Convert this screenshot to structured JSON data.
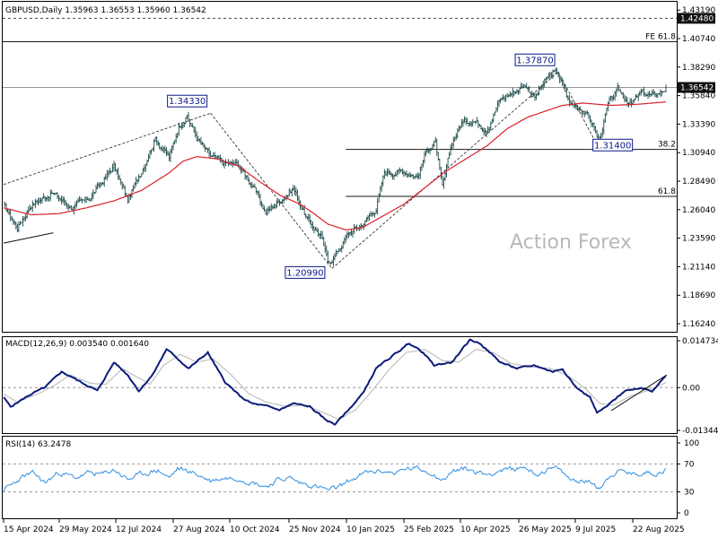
{
  "header": {
    "symbol_line": "GBPUSD,Daily  1.35963 1.36553 1.35960 1.36542"
  },
  "watermark": "Action Forex",
  "chart_data": [
    {
      "type": "candlestick",
      "pane": "price",
      "ylim": [
        1.1555,
        1.439
      ],
      "y_ticks": [
        "1.43190",
        "1.40740",
        "1.38290",
        "1.35840",
        "1.33390",
        "1.30940",
        "1.28490",
        "1.26040",
        "1.23590",
        "1.21140",
        "1.18690",
        "1.16240"
      ],
      "x_ticks": [
        "15 Apr 2024",
        "29 May 2024",
        "12 Jul 2024",
        "27 Aug 2024",
        "10 Oct 2024",
        "25 Nov 2024",
        "10 Jan 2025",
        "25 Feb 2025",
        "10 Apr 2025",
        "26 May 2025",
        "9 Jul 2025",
        "22 Aug 2025"
      ],
      "last_price_label": "1.36542",
      "last_price": 1.36542,
      "top_level_label": "1.42480",
      "top_level": 1.4248,
      "fib_levels": [
        {
          "label": "FE 61.8",
          "value": 1.4047
        },
        {
          "label": "38.2",
          "value": 1.3122
        },
        {
          "label": "61.8",
          "value": 1.2718
        }
      ],
      "annotations": [
        "1.34330",
        "1.20990",
        "1.37870",
        "1.31400"
      ],
      "series": [
        {
          "name": "close",
          "anchors": [
            [
              0,
              1.264
            ],
            [
              10,
              1.245
            ],
            [
              20,
              1.265
            ],
            [
              35,
              1.275
            ],
            [
              50,
              1.262
            ],
            [
              62,
              1.27
            ],
            [
              72,
              1.285
            ],
            [
              80,
              1.298
            ],
            [
              90,
              1.268
            ],
            [
              100,
              1.294
            ],
            [
              110,
              1.322
            ],
            [
              120,
              1.305
            ],
            [
              127,
              1.332
            ],
            [
              133,
              1.341
            ],
            [
              140,
              1.322
            ],
            [
              150,
              1.306
            ],
            [
              160,
              1.3
            ],
            [
              170,
              1.299
            ],
            [
              180,
              1.282
            ],
            [
              190,
              1.258
            ],
            [
              200,
              1.268
            ],
            [
              210,
              1.279
            ],
            [
              220,
              1.252
            ],
            [
              230,
              1.238
            ],
            [
              235,
              1.215
            ],
            [
              240,
              1.221
            ],
            [
              250,
              1.24
            ],
            [
              260,
              1.248
            ],
            [
              270,
              1.262
            ],
            [
              276,
              1.292
            ],
            [
              290,
              1.294
            ],
            [
              300,
              1.289
            ],
            [
              307,
              1.313
            ],
            [
              313,
              1.318
            ],
            [
              318,
              1.278
            ],
            [
              325,
              1.318
            ],
            [
              332,
              1.335
            ],
            [
              340,
              1.338
            ],
            [
              350,
              1.33
            ],
            [
              360,
              1.355
            ],
            [
              370,
              1.362
            ],
            [
              378,
              1.368
            ],
            [
              385,
              1.357
            ],
            [
              392,
              1.37
            ],
            [
              398,
              1.378
            ],
            [
              402,
              1.377
            ],
            [
              410,
              1.352
            ],
            [
              420,
              1.347
            ],
            [
              428,
              1.332
            ],
            [
              431,
              1.317
            ],
            [
              438,
              1.35
            ],
            [
              445,
              1.363
            ],
            [
              455,
              1.351
            ],
            [
              462,
              1.361
            ],
            [
              470,
              1.358
            ],
            [
              477,
              1.362
            ],
            [
              480,
              1.365
            ]
          ]
        },
        {
          "name": "MA",
          "anchors": [
            [
              0,
              1.262
            ],
            [
              20,
              1.256
            ],
            [
              40,
              1.257
            ],
            [
              60,
              1.262
            ],
            [
              80,
              1.268
            ],
            [
              100,
              1.277
            ],
            [
              120,
              1.292
            ],
            [
              130,
              1.302
            ],
            [
              140,
              1.306
            ],
            [
              155,
              1.304
            ],
            [
              170,
              1.298
            ],
            [
              185,
              1.285
            ],
            [
              200,
              1.273
            ],
            [
              215,
              1.265
            ],
            [
              225,
              1.257
            ],
            [
              235,
              1.248
            ],
            [
              248,
              1.243
            ],
            [
              260,
              1.245
            ],
            [
              275,
              1.255
            ],
            [
              290,
              1.265
            ],
            [
              305,
              1.279
            ],
            [
              320,
              1.293
            ],
            [
              335,
              1.304
            ],
            [
              350,
              1.315
            ],
            [
              365,
              1.33
            ],
            [
              380,
              1.34
            ],
            [
              395,
              1.346
            ],
            [
              405,
              1.35
            ],
            [
              420,
              1.352
            ],
            [
              440,
              1.35
            ],
            [
              460,
              1.351
            ],
            [
              480,
              1.353
            ]
          ]
        }
      ]
    },
    {
      "type": "line",
      "pane": "macd",
      "label": "MACD(12,26,9) 0.003540 0.001640",
      "ylim": [
        -0.01344,
        0.01473
      ],
      "y_ticks": [
        "0.014734",
        "0.00",
        "-0.013442"
      ],
      "series": [
        {
          "name": "MACD",
          "anchors": [
            [
              0,
              -0.003
            ],
            [
              5,
              -0.006
            ],
            [
              20,
              -0.002
            ],
            [
              30,
              0.0
            ],
            [
              42,
              0.005
            ],
            [
              55,
              0.002
            ],
            [
              68,
              -0.001
            ],
            [
              80,
              0.008
            ],
            [
              90,
              0.004
            ],
            [
              98,
              -0.001
            ],
            [
              108,
              0.004
            ],
            [
              118,
              0.012
            ],
            [
              124,
              0.01
            ],
            [
              134,
              0.006
            ],
            [
              148,
              0.011
            ],
            [
              160,
              0.002
            ],
            [
              172,
              -0.003
            ],
            [
              180,
              -0.005
            ],
            [
              192,
              -0.006
            ],
            [
              200,
              -0.007
            ],
            [
              210,
              -0.005
            ],
            [
              222,
              -0.006
            ],
            [
              233,
              -0.01
            ],
            [
              240,
              -0.0115
            ],
            [
              250,
              -0.007
            ],
            [
              260,
              -0.002
            ],
            [
              270,
              0.006
            ],
            [
              282,
              0.01
            ],
            [
              294,
              0.014
            ],
            [
              304,
              0.011
            ],
            [
              312,
              0.007
            ],
            [
              325,
              0.008
            ],
            [
              338,
              0.015
            ],
            [
              345,
              0.014
            ],
            [
              360,
              0.008
            ],
            [
              372,
              0.006
            ],
            [
              385,
              0.007
            ],
            [
              398,
              0.005
            ],
            [
              405,
              0.006
            ],
            [
              415,
              0.0
            ],
            [
              425,
              -0.003
            ],
            [
              430,
              -0.008
            ],
            [
              437,
              -0.006
            ],
            [
              450,
              -0.001
            ],
            [
              462,
              0.0
            ],
            [
              470,
              -0.001
            ],
            [
              475,
              0.0015
            ],
            [
              480,
              0.0035
            ]
          ]
        },
        {
          "name": "Signal",
          "anchors": [
            [
              0,
              -0.002
            ],
            [
              10,
              -0.0045
            ],
            [
              25,
              -0.002
            ],
            [
              38,
              0.001
            ],
            [
              48,
              0.004
            ],
            [
              62,
              0.0015
            ],
            [
              74,
              0.001
            ],
            [
              86,
              0.006
            ],
            [
              96,
              0.0035
            ],
            [
              106,
              0.001
            ],
            [
              116,
              0.007
            ],
            [
              128,
              0.0105
            ],
            [
              140,
              0.008
            ],
            [
              152,
              0.009
            ],
            [
              165,
              0.004
            ],
            [
              178,
              -0.002
            ],
            [
              190,
              -0.0045
            ],
            [
              205,
              -0.006
            ],
            [
              218,
              -0.0055
            ],
            [
              230,
              -0.0075
            ],
            [
              243,
              -0.01
            ],
            [
              255,
              -0.007
            ],
            [
              267,
              -0.001
            ],
            [
              280,
              0.006
            ],
            [
              292,
              0.011
            ],
            [
              305,
              0.012
            ],
            [
              318,
              0.0085
            ],
            [
              330,
              0.008
            ],
            [
              342,
              0.012
            ],
            [
              355,
              0.011
            ],
            [
              368,
              0.0075
            ],
            [
              382,
              0.0065
            ],
            [
              396,
              0.006
            ],
            [
              410,
              0.0035
            ],
            [
              422,
              -0.0005
            ],
            [
              432,
              -0.005
            ],
            [
              442,
              -0.0055
            ],
            [
              455,
              -0.0025
            ],
            [
              468,
              -0.0008
            ],
            [
              480,
              0.0016
            ]
          ]
        }
      ]
    },
    {
      "type": "line",
      "pane": "rsi",
      "label": "RSI(14) 63.2478",
      "ylim": [
        0,
        100
      ],
      "y_ticks": [
        "100",
        "70",
        "30",
        "0"
      ],
      "series": [
        {
          "name": "RSI",
          "anchors": [
            [
              0,
              33
            ],
            [
              6,
              40
            ],
            [
              14,
              52
            ],
            [
              22,
              56
            ],
            [
              30,
              43
            ],
            [
              40,
              58
            ],
            [
              52,
              50
            ],
            [
              62,
              57
            ],
            [
              72,
              55
            ],
            [
              80,
              62
            ],
            [
              90,
              48
            ],
            [
              100,
              55
            ],
            [
              112,
              61
            ],
            [
              120,
              50
            ],
            [
              126,
              63
            ],
            [
              134,
              60
            ],
            [
              140,
              55
            ],
            [
              150,
              46
            ],
            [
              160,
              50
            ],
            [
              170,
              50
            ],
            [
              180,
              44
            ],
            [
              190,
              38
            ],
            [
              200,
              48
            ],
            [
              208,
              50
            ],
            [
              214,
              43
            ],
            [
              222,
              40
            ],
            [
              230,
              36
            ],
            [
              236,
              32
            ],
            [
              242,
              36
            ],
            [
              250,
              45
            ],
            [
              262,
              57
            ],
            [
              274,
              60
            ],
            [
              284,
              57
            ],
            [
              292,
              63
            ],
            [
              300,
              63
            ],
            [
              310,
              58
            ],
            [
              318,
              47
            ],
            [
              326,
              60
            ],
            [
              334,
              63
            ],
            [
              340,
              60
            ],
            [
              350,
              55
            ],
            [
              360,
              61
            ],
            [
              370,
              62
            ],
            [
              378,
              66
            ],
            [
              386,
              55
            ],
            [
              394,
              62
            ],
            [
              402,
              63
            ],
            [
              410,
              48
            ],
            [
              420,
              46
            ],
            [
              428,
              42
            ],
            [
              432,
              36
            ],
            [
              440,
              55
            ],
            [
              448,
              60
            ],
            [
              456,
              55
            ],
            [
              466,
              58
            ],
            [
              474,
              57
            ],
            [
              480,
              63
            ]
          ]
        }
      ]
    }
  ]
}
